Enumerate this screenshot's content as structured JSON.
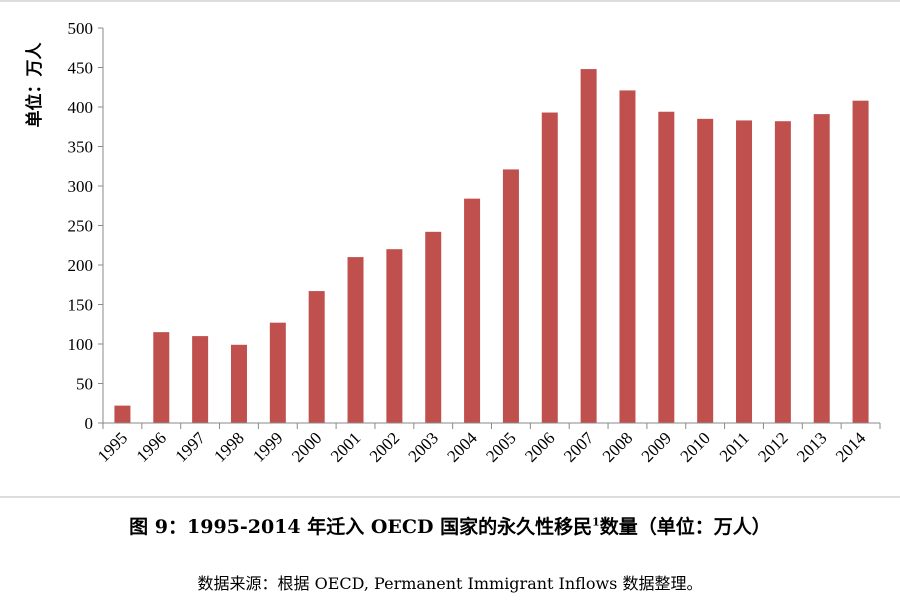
{
  "chart_data": {
    "type": "bar",
    "ylabel": "单位：万人",
    "xlabel": "",
    "ylim": [
      0,
      500
    ],
    "yticks": [
      0,
      50,
      100,
      150,
      200,
      250,
      300,
      350,
      400,
      450,
      500
    ],
    "categories": [
      "1995",
      "1996",
      "1997",
      "1998",
      "1999",
      "2000",
      "2001",
      "2002",
      "2003",
      "2004",
      "2005",
      "2006",
      "2007",
      "2008",
      "2009",
      "2010",
      "2011",
      "2012",
      "2013",
      "2014"
    ],
    "values": [
      22,
      115,
      110,
      99,
      127,
      167,
      210,
      220,
      242,
      284,
      321,
      393,
      448,
      421,
      394,
      385,
      383,
      382,
      391,
      408
    ],
    "bar_color": "#c0504d",
    "grid": false,
    "legend": "none"
  },
  "caption": {
    "main": "图  9：1995-2014 年迁入 OECD 国家的永久性移民",
    "superscript": "1",
    "tail": "数量（单位：万人）"
  },
  "source": "数据来源：根据 OECD, Permanent Immigrant Inflows 数据整理。"
}
